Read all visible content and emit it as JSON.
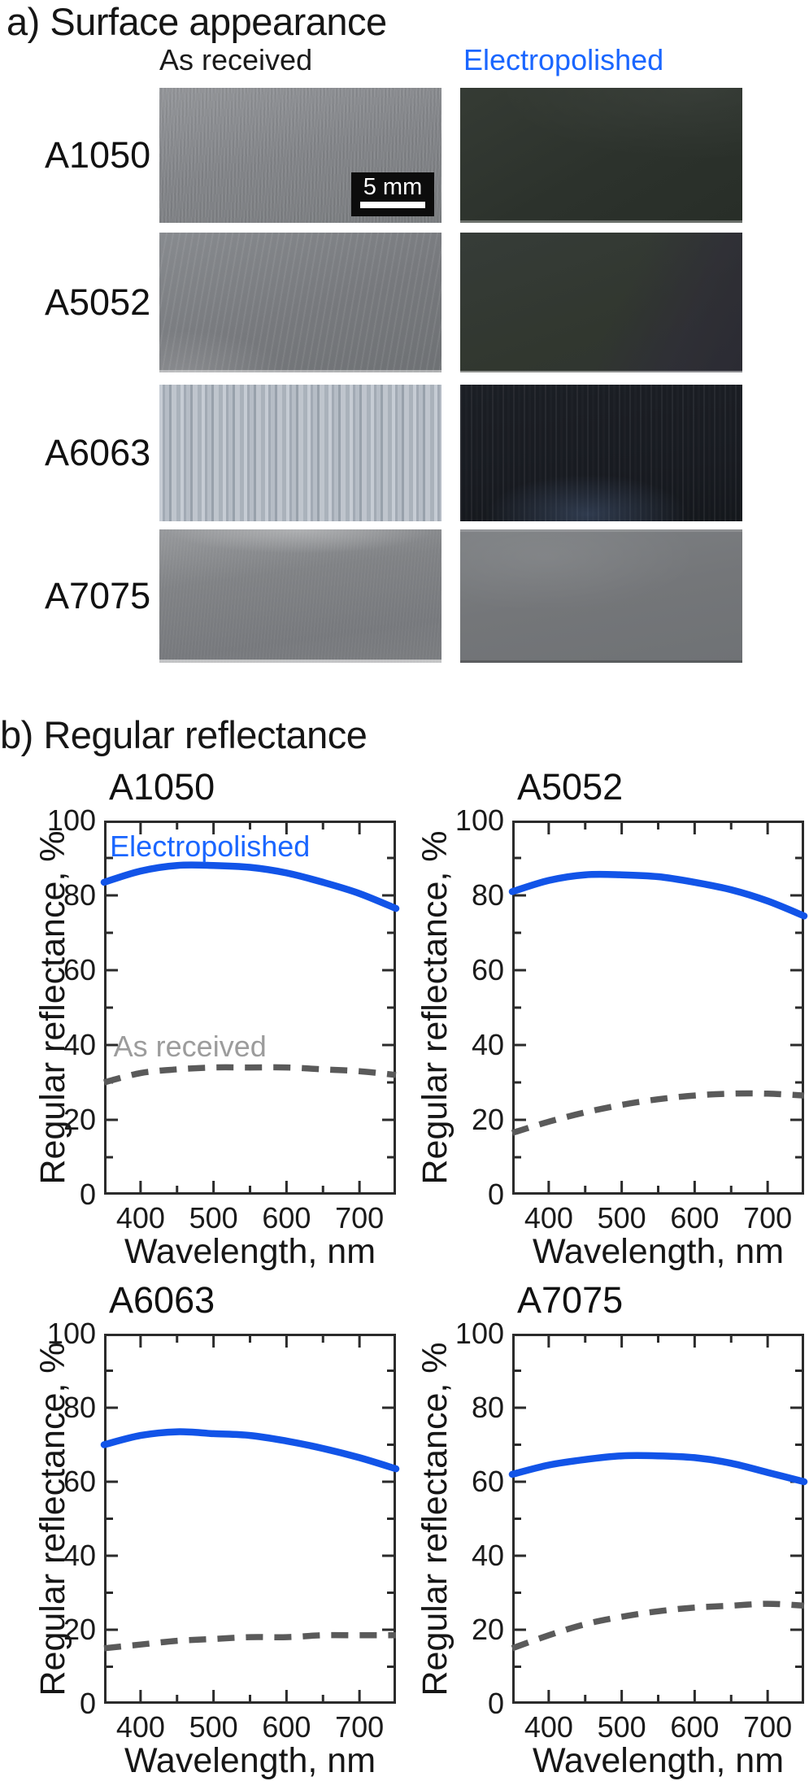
{
  "panel_a": {
    "heading": "a) Surface appearance",
    "columns": [
      {
        "label": "As received",
        "color": "#1a1a1a"
      },
      {
        "label": "Electropolished",
        "color": "#1a66ff"
      }
    ],
    "scale_bar_label": "5 mm",
    "rows": [
      {
        "alloy": "A1050"
      },
      {
        "alloy": "A5052"
      },
      {
        "alloy": "A6063"
      },
      {
        "alloy": "A7075"
      }
    ]
  },
  "panel_b": {
    "heading": "b) Regular reflectance"
  },
  "colors": {
    "electropolished_blue": "#1254e8",
    "electropolished_label_blue": "#1a66ff",
    "as_received_dash_gray": "#5a5a5a",
    "as_received_label_gray": "#9c9c9c",
    "axis_frame": "#2b2b2b"
  },
  "chart_data": [
    {
      "type": "line",
      "title": "A1050",
      "xlabel": "Wavelength, nm",
      "ylabel": "Regular reflectance, %",
      "xlim": [
        350,
        750
      ],
      "ylim": [
        0,
        100
      ],
      "xticks": [
        400,
        500,
        600,
        700
      ],
      "xticks_minor": [
        450,
        550,
        650
      ],
      "yticks": [
        0,
        20,
        40,
        60,
        80,
        100
      ],
      "yticks_minor": [
        10,
        30,
        50,
        70,
        90
      ],
      "x": [
        350,
        400,
        450,
        500,
        550,
        600,
        650,
        700,
        750
      ],
      "series": [
        {
          "name": "Electropolished",
          "line_style": "solid",
          "color": "#1254e8",
          "values": [
            83.5,
            86.5,
            88,
            88,
            87.5,
            86,
            83.5,
            80.5,
            76.5
          ]
        },
        {
          "name": "As received",
          "line_style": "dashed",
          "color": "#5a5a5a",
          "values": [
            30,
            32.5,
            33.5,
            34,
            34,
            34,
            33.5,
            33,
            32
          ]
        }
      ],
      "annotations": [
        {
          "text": "Electropolished",
          "x": 358,
          "y": 97,
          "color": "#1a66ff"
        },
        {
          "text": "As received",
          "x": 363,
          "y": 43.5,
          "color": "#9c9c9c"
        }
      ]
    },
    {
      "type": "line",
      "title": "A5052",
      "xlabel": "Wavelength, nm",
      "ylabel": "Regular reflectance, %",
      "xlim": [
        350,
        750
      ],
      "ylim": [
        0,
        100
      ],
      "xticks": [
        400,
        500,
        600,
        700
      ],
      "xticks_minor": [
        450,
        550,
        650
      ],
      "yticks": [
        0,
        20,
        40,
        60,
        80,
        100
      ],
      "yticks_minor": [
        10,
        30,
        50,
        70,
        90
      ],
      "x": [
        350,
        400,
        450,
        500,
        550,
        600,
        650,
        700,
        750
      ],
      "series": [
        {
          "name": "Electropolished",
          "line_style": "solid",
          "color": "#1254e8",
          "values": [
            81,
            84,
            85.5,
            85.5,
            85,
            83.5,
            81.5,
            78.5,
            74.5
          ]
        },
        {
          "name": "As received",
          "line_style": "dashed",
          "color": "#5a5a5a",
          "values": [
            16.5,
            19.5,
            22,
            24,
            25.5,
            26.5,
            27,
            27,
            26.5
          ]
        }
      ],
      "annotations": []
    },
    {
      "type": "line",
      "title": "A6063",
      "xlabel": "Wavelength, nm",
      "ylabel": "Regular reflectance, %",
      "xlim": [
        350,
        750
      ],
      "ylim": [
        0,
        100
      ],
      "xticks": [
        400,
        500,
        600,
        700
      ],
      "xticks_minor": [
        450,
        550,
        650
      ],
      "yticks": [
        0,
        20,
        40,
        60,
        80,
        100
      ],
      "yticks_minor": [
        10,
        30,
        50,
        70,
        90
      ],
      "x": [
        350,
        400,
        450,
        500,
        550,
        600,
        650,
        700,
        750
      ],
      "series": [
        {
          "name": "Electropolished",
          "line_style": "solid",
          "color": "#1254e8",
          "values": [
            70,
            72.5,
            73.5,
            73,
            72.5,
            71,
            69,
            66.5,
            63.5
          ]
        },
        {
          "name": "As received",
          "line_style": "dashed",
          "color": "#5a5a5a",
          "values": [
            15,
            16,
            17,
            17.5,
            18,
            18,
            18.5,
            18.5,
            18.5
          ]
        }
      ],
      "annotations": []
    },
    {
      "type": "line",
      "title": "A7075",
      "xlabel": "Wavelength, nm",
      "ylabel": "Regular reflectance, %",
      "xlim": [
        350,
        750
      ],
      "ylim": [
        0,
        100
      ],
      "xticks": [
        400,
        500,
        600,
        700
      ],
      "xticks_minor": [
        450,
        550,
        650
      ],
      "yticks": [
        0,
        20,
        40,
        60,
        80,
        100
      ],
      "yticks_minor": [
        10,
        30,
        50,
        70,
        90
      ],
      "x": [
        350,
        400,
        450,
        500,
        550,
        600,
        650,
        700,
        750
      ],
      "series": [
        {
          "name": "Electropolished",
          "line_style": "solid",
          "color": "#1254e8",
          "values": [
            62,
            64.5,
            66,
            67,
            67,
            66.5,
            65,
            62.5,
            60
          ]
        },
        {
          "name": "As received",
          "line_style": "dashed",
          "color": "#5a5a5a",
          "values": [
            15,
            18.5,
            21.5,
            23.5,
            25,
            26,
            26.5,
            27,
            26.5
          ]
        }
      ],
      "annotations": []
    }
  ]
}
